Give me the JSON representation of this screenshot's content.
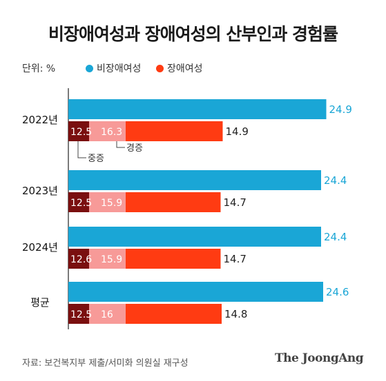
{
  "title": "비장애여성과 장애여성의 산부인과 경험률",
  "unit_label": "단위: %",
  "legend": [
    {
      "label": "비장애여성",
      "color": "#1aa6d6"
    },
    {
      "label": "장애여성",
      "color": "#ff3b12"
    }
  ],
  "annotations": {
    "severe": "중증",
    "mild": "경증"
  },
  "source": "자료: 보건복지부 제출/서미화 의원실 재구성",
  "logo": "The JoongAng",
  "chart_data": {
    "type": "bar",
    "orientation": "horizontal",
    "categories": [
      "2022년",
      "2023년",
      "2024년",
      "평균"
    ],
    "series": [
      {
        "name": "비장애여성",
        "color": "#1aa6d6",
        "values": [
          24.9,
          24.4,
          24.4,
          24.6
        ]
      },
      {
        "name": "장애여성",
        "color": "#ff3b12",
        "values": [
          14.9,
          14.7,
          14.7,
          14.8
        ]
      }
    ],
    "disabled_breakdown": {
      "중증": {
        "color": "#7a0f0f",
        "values": [
          12.5,
          12.5,
          12.6,
          12.5
        ]
      },
      "경증": {
        "color": "#f79a98",
        "values": [
          16.3,
          15.9,
          15.9,
          16
        ]
      }
    },
    "value_labels": {
      "비장애여성": [
        "24.9",
        "24.4",
        "24.4",
        "24.6"
      ],
      "장애여성": [
        "14.9",
        "14.7",
        "14.7",
        "14.8"
      ],
      "중증": [
        "12.5",
        "12.5",
        "12.6",
        "12.5"
      ],
      "경증": [
        "16.3",
        "15.9",
        "15.9",
        "16"
      ]
    }
  }
}
